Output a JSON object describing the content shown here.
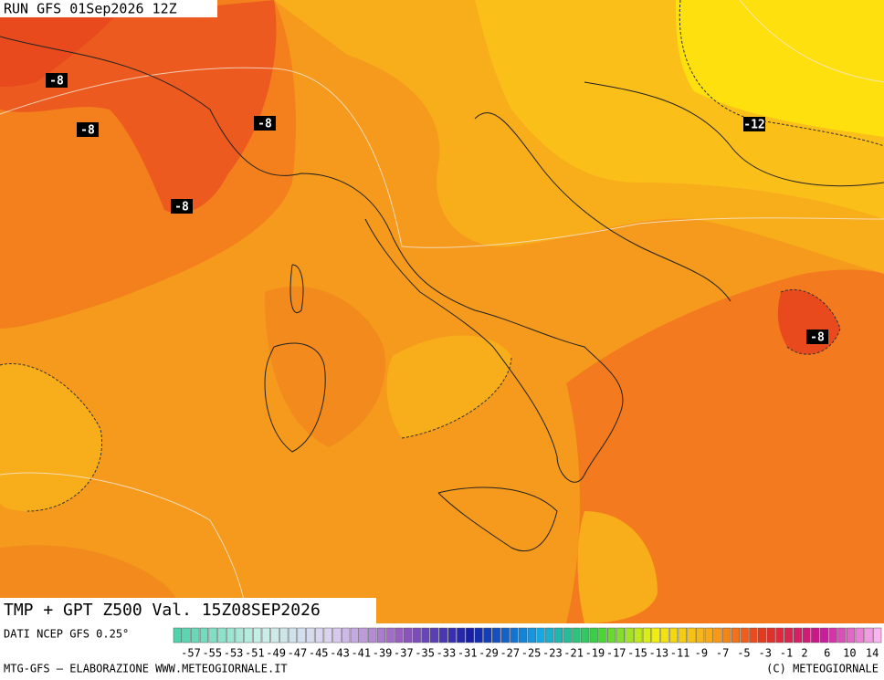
{
  "header": {
    "run": "RUN GFS 01Sep2026 12Z"
  },
  "map": {
    "contour_labels": [
      "-8",
      "-8",
      "-8",
      "-8",
      "-12",
      "-8"
    ]
  },
  "caption": {
    "title": "TMP + GPT Z500 Val. 15Z08SEP2026",
    "source": "DATI NCEP GFS 0.25°"
  },
  "colorbar": {
    "labels": [
      -57,
      -55,
      -53,
      -51,
      -49,
      -47,
      -45,
      -43,
      -41,
      -39,
      -37,
      -35,
      -33,
      -31,
      -29,
      -27,
      -25,
      -23,
      -21,
      -19,
      -17,
      -15,
      -13,
      -11,
      -9,
      -7,
      -5,
      -3,
      -1,
      2,
      6,
      10,
      14
    ]
  },
  "footer": {
    "left": "MTG-GFS — ELABORAZIONE WWW.METEOGIORNALE.IT",
    "right": "(C) METEOGIORNALE"
  }
}
